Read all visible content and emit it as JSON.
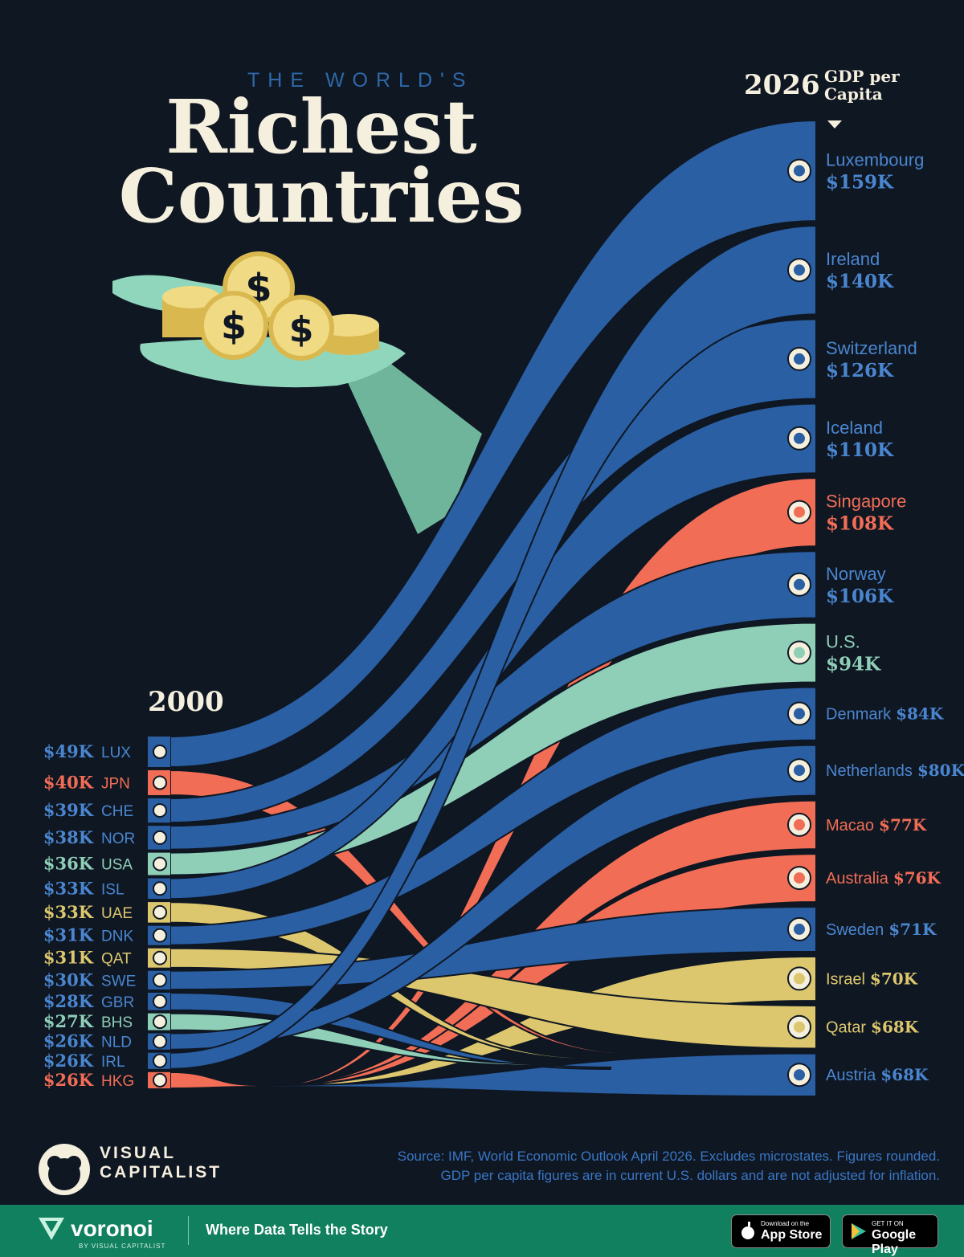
{
  "title": {
    "pre": "THE WORLD'S",
    "line1": "Richest",
    "line2": "Countries"
  },
  "header_2026": {
    "year": "2026",
    "label_line1": "GDP per",
    "label_line2": "Capita"
  },
  "header_2000": {
    "year": "2000"
  },
  "source": {
    "line1": "Source: IMF, World Economic Outlook April 2026. Excludes microstates. Figures rounded.",
    "line2": "GDP per capita figures are in current U.S. dollars and are not adjusted for inflation."
  },
  "brand": {
    "vc_line1": "VISUAL",
    "vc_line2": "CAPITALIST"
  },
  "footer": {
    "brand": "voronoi",
    "brand_sub": "BY VISUAL CAPITALIST",
    "tagline": "Where Data Tells the Story",
    "app_store_small": "Download on the",
    "app_store": "App Store",
    "google_play_small": "GET IT ON",
    "google_play": "Google Play"
  },
  "colors": {
    "blue": "#2a5fa4",
    "salmon": "#f26d55",
    "teal": "#8fcfb8",
    "yellow": "#dcc76e",
    "cream": "#f5efde",
    "background": "#0f1723"
  },
  "chart_data": {
    "type": "sankey",
    "title": "The World's Richest Countries",
    "units": "USD, current",
    "left_year": "2000",
    "right_year": "2026",
    "left": [
      {
        "label": "$49K",
        "code": "LUX",
        "value": 49,
        "color": "blue"
      },
      {
        "label": "$40K",
        "code": "JPN",
        "value": 40,
        "color": "salmon"
      },
      {
        "label": "$39K",
        "code": "CHE",
        "value": 39,
        "color": "blue"
      },
      {
        "label": "$38K",
        "code": "NOR",
        "value": 38,
        "color": "blue"
      },
      {
        "label": "$36K",
        "code": "USA",
        "value": 36,
        "color": "teal"
      },
      {
        "label": "$33K",
        "code": "ISL",
        "value": 33,
        "color": "blue"
      },
      {
        "label": "$33K",
        "code": "UAE",
        "value": 33,
        "color": "yellow"
      },
      {
        "label": "$31K",
        "code": "DNK",
        "value": 31,
        "color": "blue"
      },
      {
        "label": "$31K",
        "code": "QAT",
        "value": 31,
        "color": "yellow"
      },
      {
        "label": "$30K",
        "code": "SWE",
        "value": 30,
        "color": "blue"
      },
      {
        "label": "$28K",
        "code": "GBR",
        "value": 28,
        "color": "blue"
      },
      {
        "label": "$27K",
        "code": "BHS",
        "value": 27,
        "color": "teal"
      },
      {
        "label": "$26K",
        "code": "NLD",
        "value": 26,
        "color": "blue"
      },
      {
        "label": "$26K",
        "code": "IRL",
        "value": 26,
        "color": "blue"
      },
      {
        "label": "$26K",
        "code": "HKG",
        "value": 26,
        "color": "salmon"
      }
    ],
    "right": [
      {
        "name": "Luxembourg",
        "label": "$159K",
        "value": 159,
        "color": "blue",
        "from": "LUX"
      },
      {
        "name": "Ireland",
        "label": "$140K",
        "value": 140,
        "color": "blue",
        "from": "IRL"
      },
      {
        "name": "Switzerland",
        "label": "$126K",
        "value": 126,
        "color": "blue",
        "from": "CHE"
      },
      {
        "name": "Iceland",
        "label": "$110K",
        "value": 110,
        "color": "blue",
        "from": "ISL"
      },
      {
        "name": "Singapore",
        "label": "$108K",
        "value": 108,
        "color": "salmon",
        "from": null
      },
      {
        "name": "Norway",
        "label": "$106K",
        "value": 106,
        "color": "blue",
        "from": "NOR"
      },
      {
        "name": "U.S.",
        "label": "$94K",
        "value": 94,
        "color": "teal",
        "from": "USA"
      },
      {
        "name": "Denmark",
        "label": "$84K",
        "value": 84,
        "color": "blue",
        "from": "DNK"
      },
      {
        "name": "Netherlands",
        "label": "$80K",
        "value": 80,
        "color": "blue",
        "from": "NLD"
      },
      {
        "name": "Macao",
        "label": "$77K",
        "value": 77,
        "color": "salmon",
        "from": null
      },
      {
        "name": "Australia",
        "label": "$76K",
        "value": 76,
        "color": "salmon",
        "from": null
      },
      {
        "name": "Sweden",
        "label": "$71K",
        "value": 71,
        "color": "blue",
        "from": "SWE"
      },
      {
        "name": "Israel",
        "label": "$70K",
        "value": 70,
        "color": "yellow",
        "from": null
      },
      {
        "name": "Qatar",
        "label": "$68K",
        "value": 68,
        "color": "yellow",
        "from": "QAT"
      },
      {
        "name": "Austria",
        "label": "$68K",
        "value": 68,
        "color": "blue",
        "from": null
      }
    ]
  }
}
